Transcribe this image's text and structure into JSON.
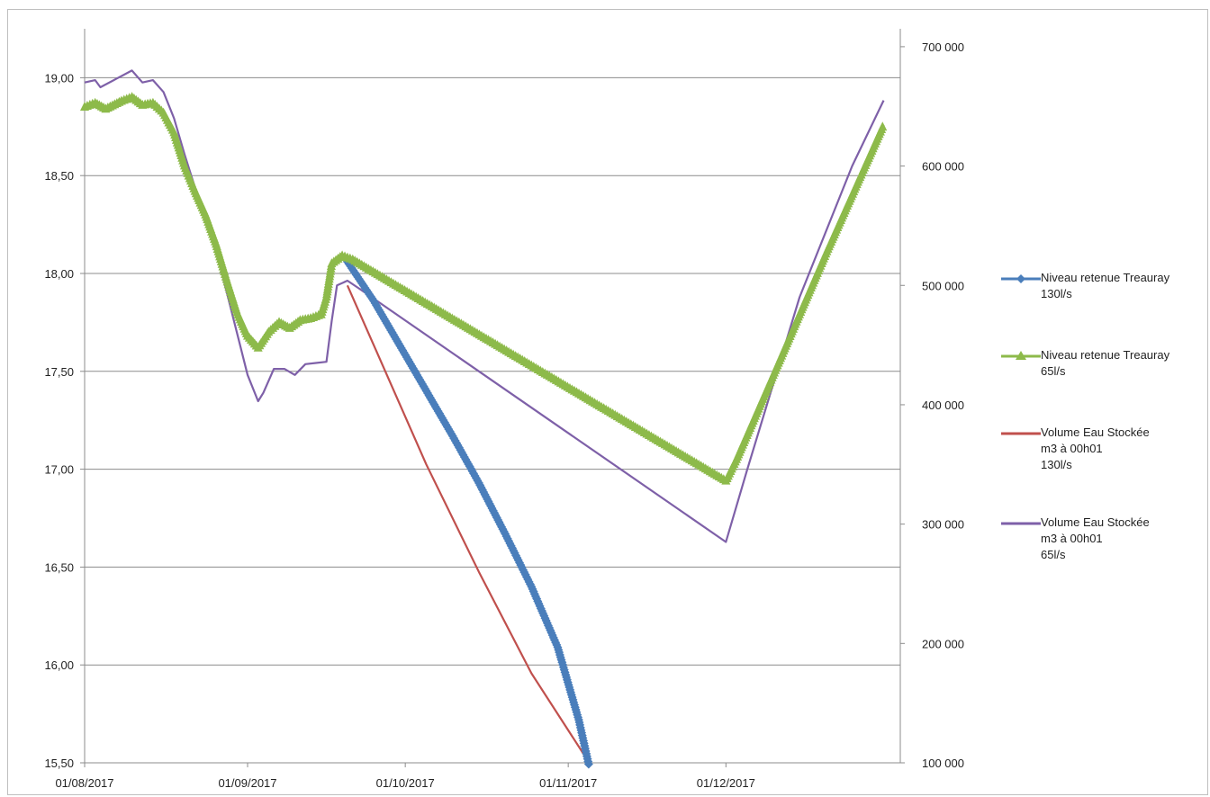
{
  "chart_data": {
    "type": "line",
    "x_start": "2017-08-01",
    "x_ticks": [
      "01/08/2017",
      "01/09/2017",
      "01/10/2017",
      "01/11/2017",
      "01/12/2017"
    ],
    "y_left": {
      "ticks": [
        "15,50",
        "16,00",
        "16,50",
        "17,00",
        "17,50",
        "18,00",
        "18,50",
        "19,00"
      ],
      "min": 15.5,
      "max": 19.25
    },
    "y_right": {
      "ticks": [
        "100 000",
        "200 000",
        "300 000",
        "400 000",
        "500 000",
        "600 000",
        "700 000"
      ],
      "min": 100000,
      "max": 715000
    },
    "grid": "horizontal",
    "legend_position": "right",
    "series": [
      {
        "name": "Niveau retenue Treauray\n130l/s",
        "axis": "left",
        "color": "#4a7ebb",
        "marker": "diamond",
        "points": [
          [
            "2017-09-20",
            18.06
          ],
          [
            "2017-09-25",
            17.86
          ],
          [
            "2017-09-30",
            17.63
          ],
          [
            "2017-10-05",
            17.4
          ],
          [
            "2017-10-10",
            17.17
          ],
          [
            "2017-10-15",
            16.93
          ],
          [
            "2017-10-20",
            16.67
          ],
          [
            "2017-10-25",
            16.4
          ],
          [
            "2017-10-30",
            16.09
          ],
          [
            "2017-11-03",
            15.72
          ],
          [
            "2017-11-05",
            15.48
          ]
        ]
      },
      {
        "name": "Niveau retenue Treauray\n65l/s",
        "axis": "left",
        "color": "#8dba4a",
        "marker": "triangle",
        "points": [
          [
            "2017-08-01",
            18.85
          ],
          [
            "2017-08-03",
            18.87
          ],
          [
            "2017-08-05",
            18.84
          ],
          [
            "2017-08-08",
            18.88
          ],
          [
            "2017-08-10",
            18.9
          ],
          [
            "2017-08-12",
            18.86
          ],
          [
            "2017-08-14",
            18.87
          ],
          [
            "2017-08-16",
            18.82
          ],
          [
            "2017-08-18",
            18.72
          ],
          [
            "2017-08-20",
            18.55
          ],
          [
            "2017-08-22",
            18.42
          ],
          [
            "2017-08-24",
            18.3
          ],
          [
            "2017-08-26",
            18.15
          ],
          [
            "2017-08-28",
            17.97
          ],
          [
            "2017-08-30",
            17.8
          ],
          [
            "2017-09-01",
            17.68
          ],
          [
            "2017-09-03",
            17.62
          ],
          [
            "2017-09-05",
            17.7
          ],
          [
            "2017-09-07",
            17.75
          ],
          [
            "2017-09-09",
            17.72
          ],
          [
            "2017-09-11",
            17.76
          ],
          [
            "2017-09-13",
            17.77
          ],
          [
            "2017-09-15",
            17.79
          ],
          [
            "2017-09-16",
            17.88
          ],
          [
            "2017-09-17",
            18.05
          ],
          [
            "2017-09-19",
            18.09
          ],
          [
            "2017-09-21",
            18.07
          ],
          [
            "2017-12-01",
            16.94
          ],
          [
            "2017-12-03",
            17.05
          ],
          [
            "2017-12-10",
            17.48
          ],
          [
            "2017-12-20",
            18.1
          ],
          [
            "2017-12-31",
            18.76
          ]
        ]
      },
      {
        "name": "Volume Eau Stockée\nm3 à 00h01\n130l/s",
        "axis": "right",
        "color": "#c0504d",
        "marker": "none",
        "points": [
          [
            "2017-09-20",
            500000
          ],
          [
            "2017-09-25",
            450000
          ],
          [
            "2017-10-05",
            350000
          ],
          [
            "2017-10-15",
            260000
          ],
          [
            "2017-10-25",
            175000
          ],
          [
            "2017-11-05",
            100000
          ]
        ]
      },
      {
        "name": "Volume Eau Stockée\nm3 à 00h01\n65l/s",
        "axis": "right",
        "color": "#7e60a8",
        "marker": "none",
        "points": [
          [
            "2017-08-01",
            670000
          ],
          [
            "2017-08-03",
            672000
          ],
          [
            "2017-08-04",
            666000
          ],
          [
            "2017-08-07",
            673000
          ],
          [
            "2017-08-10",
            680000
          ],
          [
            "2017-08-12",
            670000
          ],
          [
            "2017-08-14",
            672000
          ],
          [
            "2017-08-16",
            662000
          ],
          [
            "2017-08-18",
            640000
          ],
          [
            "2017-08-20",
            610000
          ],
          [
            "2017-08-22",
            582000
          ],
          [
            "2017-08-24",
            560000
          ],
          [
            "2017-08-26",
            530000
          ],
          [
            "2017-08-28",
            495000
          ],
          [
            "2017-08-30",
            460000
          ],
          [
            "2017-09-01",
            425000
          ],
          [
            "2017-09-03",
            403000
          ],
          [
            "2017-09-04",
            410000
          ],
          [
            "2017-09-06",
            430000
          ],
          [
            "2017-09-08",
            430000
          ],
          [
            "2017-09-10",
            425000
          ],
          [
            "2017-09-12",
            434000
          ],
          [
            "2017-09-14",
            435000
          ],
          [
            "2017-09-16",
            436000
          ],
          [
            "2017-09-17",
            470000
          ],
          [
            "2017-09-18",
            500000
          ],
          [
            "2017-09-20",
            504000
          ],
          [
            "2017-09-22",
            498000
          ],
          [
            "2017-12-01",
            285000
          ],
          [
            "2017-12-05",
            345000
          ],
          [
            "2017-12-15",
            490000
          ],
          [
            "2017-12-25",
            600000
          ],
          [
            "2017-12-31",
            655000
          ]
        ]
      }
    ]
  }
}
